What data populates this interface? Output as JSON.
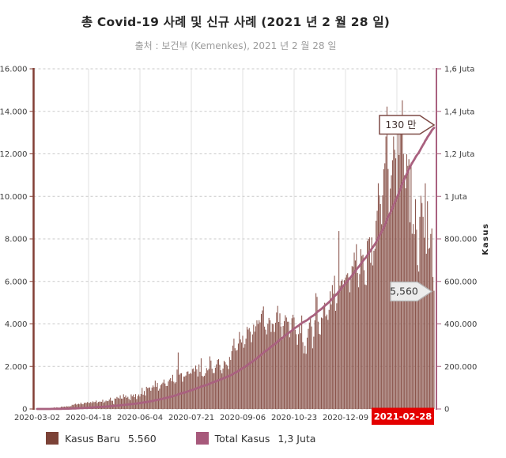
{
  "header": {
    "title": "총 Covid-19 사례 및 신규 사례 (2021 년 2 월 28 일)",
    "subtitle": "출처 : 보건부 (Kemenkes), 2021 년 2 월 28 일"
  },
  "annotations": {
    "total_callout": "130 만",
    "latest_callout": "5,560"
  },
  "legend": {
    "items": [
      {
        "label": "Kasus Baru",
        "value": "5.560",
        "color": "#7c4237"
      },
      {
        "label": "Total Kasus",
        "value": "1,3 Juta",
        "color": "#a7597b"
      }
    ]
  },
  "chart_data": {
    "type": "bar",
    "title": "총 Covid-19 사례 및 신규 사례 (2021 년 2 월 28 일)",
    "subtitle": "출처 : 보건부 (Kemenkes), 2021 년 2 월 28 일",
    "grid": true,
    "legend_position": "bottom",
    "colors": {
      "bar": "#8a544b",
      "line": "#a9617f",
      "left_axis": "#823f35",
      "right_axis": "#a9617f",
      "grid_h": "#c9c9c9",
      "grid_v": "#e2e2e2",
      "tick_text": "#3b3b3b",
      "highlight_bg": "#e40000",
      "highlight_text": "#ffffff"
    },
    "x_axis": {
      "start": "2020-03-02",
      "end": "2021-02-28",
      "total_days": 363,
      "tick_labels": [
        "2020-03-02",
        "2020-04-18",
        "2020-06-04",
        "2020-07-21",
        "2020-09-06",
        "2020-10-23",
        "2020-12-09"
      ],
      "highlight": "2021-02-28"
    },
    "left_axis": {
      "label": "",
      "max": 16000,
      "step": 2000,
      "tick_labels": [
        "16.000",
        "14.000",
        "12.000",
        "10.000",
        "8.000",
        "6.000",
        "4.000",
        "2.000",
        "0"
      ]
    },
    "right_axis": {
      "label": "Kasus",
      "max": 1600000,
      "step": 200000,
      "tick_labels": [
        "1,6 Juta",
        "1,4 Juta",
        "1,2 Juta",
        "1 Juta",
        "800.000",
        "600.000",
        "400.000",
        "200.000",
        "0"
      ]
    },
    "series": [
      {
        "name": "Kasus Baru",
        "type": "bar",
        "axis": "left",
        "latest_value": 5560,
        "daily_values": [
          2,
          0,
          2,
          2,
          7,
          4,
          6,
          13,
          19,
          27,
          34,
          21,
          35,
          48,
          55,
          60,
          81,
          55,
          82,
          64,
          59,
          65,
          107,
          103,
          105,
          109,
          102,
          130,
          114,
          129,
          110,
          142,
          196,
          181,
          218,
          247,
          204,
          226,
          243,
          219,
          297,
          233,
          221,
          283,
          297,
          282,
          325,
          299,
          283,
          327,
          283,
          357,
          319,
          331,
          396,
          275,
          330,
          347,
          343,
          337,
          433,
          292,
          349,
          395,
          367,
          376,
          441,
          533,
          387,
          386,
          233,
          496,
          484,
          568,
          529,
          489,
          639,
          489,
          486,
          693,
          555,
          634,
          526,
          573,
          479,
          415,
          686,
          594,
          678,
          557,
          700,
          467,
          609,
          684,
          585,
          703,
          993,
          672,
          847,
          632,
          1043,
          979,
          999,
          1014,
          857,
          1007,
          1106,
          1031,
          1331,
          1041,
          1226,
          862,
          954,
          1113,
          1178,
          1240,
          1385,
          1198,
          1082,
          1082,
          1293,
          1385,
          1448,
          1301,
          1607,
          1282,
          1209,
          1268,
          1853,
          2657,
          1611,
          1671,
          1681,
          1282,
          1522,
          1522,
          1574,
          1752,
          1769,
          1639,
          1693,
          1655,
          1882,
          1906,
          1761,
          2040,
          1868,
          1525,
          2096,
          1748,
          2381,
          1560,
          1519,
          1560,
          1679,
          1922,
          1815,
          1882,
          2473,
          2277,
          1893,
          1687,
          1693,
          1942,
          2098,
          2307,
          2345,
          2081,
          1821,
          1673,
          1902,
          2266,
          2197,
          2090,
          2037,
          1877,
          2447,
          2306,
          2719,
          2982,
          3308,
          2858,
          2743,
          2775,
          3075,
          3622,
          3269,
          3128,
          3444,
          2880,
          3046,
          3307,
          3861,
          3737,
          3806,
          3636,
          3141,
          3507,
          3963,
          3635,
          3891,
          4168,
          3989,
          4176,
          4071,
          4465,
          4634,
          4823,
          3874,
          3732,
          3509,
          4002,
          4284,
          4174,
          3622,
          4007,
          3992,
          3622,
          4056,
          4538,
          4850,
          4094,
          4497,
          3880,
          3267,
          3906,
          4127,
          4411,
          4301,
          4105,
          4105,
          3373,
          3602,
          4267,
          4432,
          4301,
          3732,
          3520,
          3020,
          3520,
          4029,
          3565,
          4396,
          3143,
          2618,
          2973,
          2596,
          3356,
          3770,
          4065,
          4262,
          3880,
          2853,
          3402,
          4173,
          5444,
          5272,
          4106,
          3535,
          3500,
          4301,
          4265,
          4792,
          4998,
          4360,
          4442,
          4192,
          4660,
          5534,
          4917,
          5828,
          5418,
          6267,
          4617,
          4973,
          5533,
          8369,
          5803,
          6027,
          6089,
          5754,
          6058,
          6183,
          6310,
          6388,
          6189,
          5489,
          6120,
          6725,
          6689,
          7354,
          6982,
          7751,
          6399,
          5722,
          6347,
          7514,
          7199,
          7259,
          6528,
          5854,
          5828,
          7903,
          8002,
          8074,
          6877,
          8072,
          6753,
          7445,
          7533,
          8854,
          9321,
          10617,
          10046,
          9640,
          8692,
          10047,
          11278,
          11557,
          12818,
          14224,
          11287,
          9086,
          10365,
          10994,
          11703,
          12818,
          12191,
          11788,
          9994,
          13094,
          11948,
          13695,
          13802,
          14518,
          12001,
          10994,
          10379,
          11984,
          11434,
          11749,
          8776,
          11588,
          8242,
          8700,
          8221,
          9869,
          8435,
          6765,
          6462,
          9039,
          10029,
          9687,
          9039,
          8054,
          10614,
          7300,
          9775,
          7533,
          7580,
          8232,
          8493,
          6208,
          5560
        ]
      },
      {
        "name": "Total Kasus",
        "type": "line",
        "axis": "right",
        "latest_label": "1,3 Juta",
        "derivation": "cumulative-sum-of-daily-values"
      }
    ]
  }
}
